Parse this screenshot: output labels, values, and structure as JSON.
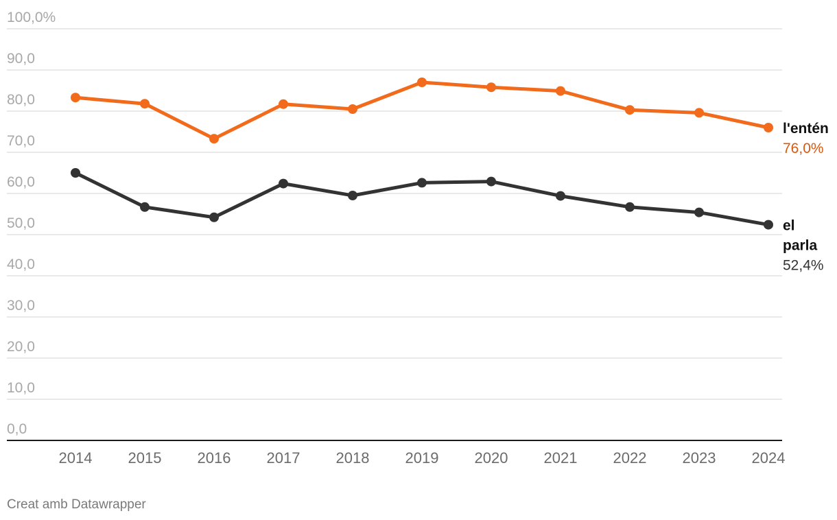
{
  "chart_data": {
    "type": "line",
    "title": "",
    "xlabel": "",
    "ylabel": "",
    "x": [
      2014,
      2015,
      2016,
      2017,
      2018,
      2019,
      2020,
      2021,
      2022,
      2023,
      2024
    ],
    "ylim": [
      0,
      100
    ],
    "yticks": [
      0,
      10,
      20,
      30,
      40,
      50,
      60,
      70,
      80,
      90,
      100
    ],
    "ytick_labels": [
      "0,0",
      "10,0",
      "20,0",
      "30,0",
      "40,0",
      "50,0",
      "60,0",
      "70,0",
      "80,0",
      "90,0",
      "100,0%"
    ],
    "grid": true,
    "series": [
      {
        "name": "l'entén",
        "label_lines": [
          "l'entén"
        ],
        "end_label": "76,0%",
        "color": "#f26a1b",
        "label_color": "#d8590f",
        "values": [
          83.3,
          81.8,
          73.3,
          81.7,
          80.5,
          87.0,
          85.8,
          84.9,
          80.3,
          79.6,
          76.0
        ]
      },
      {
        "name": "el parla",
        "label_lines": [
          "el",
          "parla"
        ],
        "end_label": "52,4%",
        "color": "#333333",
        "label_color": "#333333",
        "values": [
          65.0,
          56.7,
          54.2,
          62.4,
          59.5,
          62.6,
          62.9,
          59.4,
          56.7,
          55.4,
          52.4
        ]
      }
    ]
  },
  "footer": {
    "credit": "Creat amb Datawrapper"
  }
}
